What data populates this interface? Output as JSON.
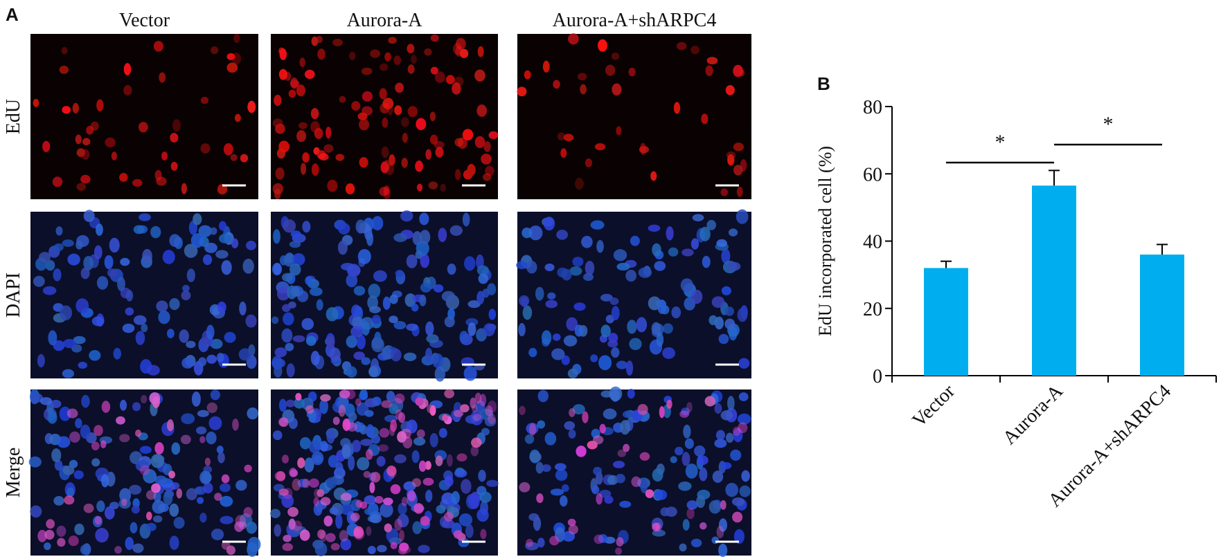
{
  "panel_a": {
    "label": "A",
    "columns": [
      "Vector",
      "Aurora-A",
      "Aurora-A+shARPC4"
    ],
    "rows": [
      "EdU",
      "DAPI",
      "Merge"
    ]
  },
  "chart_data": {
    "type": "bar",
    "panel_label": "B",
    "y_label": "EdU incorporated cell (%)",
    "categories": [
      "Vector",
      "Aurora-A",
      "Aurora-A+shARPC4"
    ],
    "values": [
      32,
      56.5,
      36
    ],
    "errors": [
      2,
      4.5,
      3
    ],
    "color": "#00aeef",
    "ylim": [
      0,
      80
    ],
    "yticks": [
      0,
      20,
      40,
      60,
      80
    ],
    "annotations": [
      "*",
      "*"
    ]
  }
}
